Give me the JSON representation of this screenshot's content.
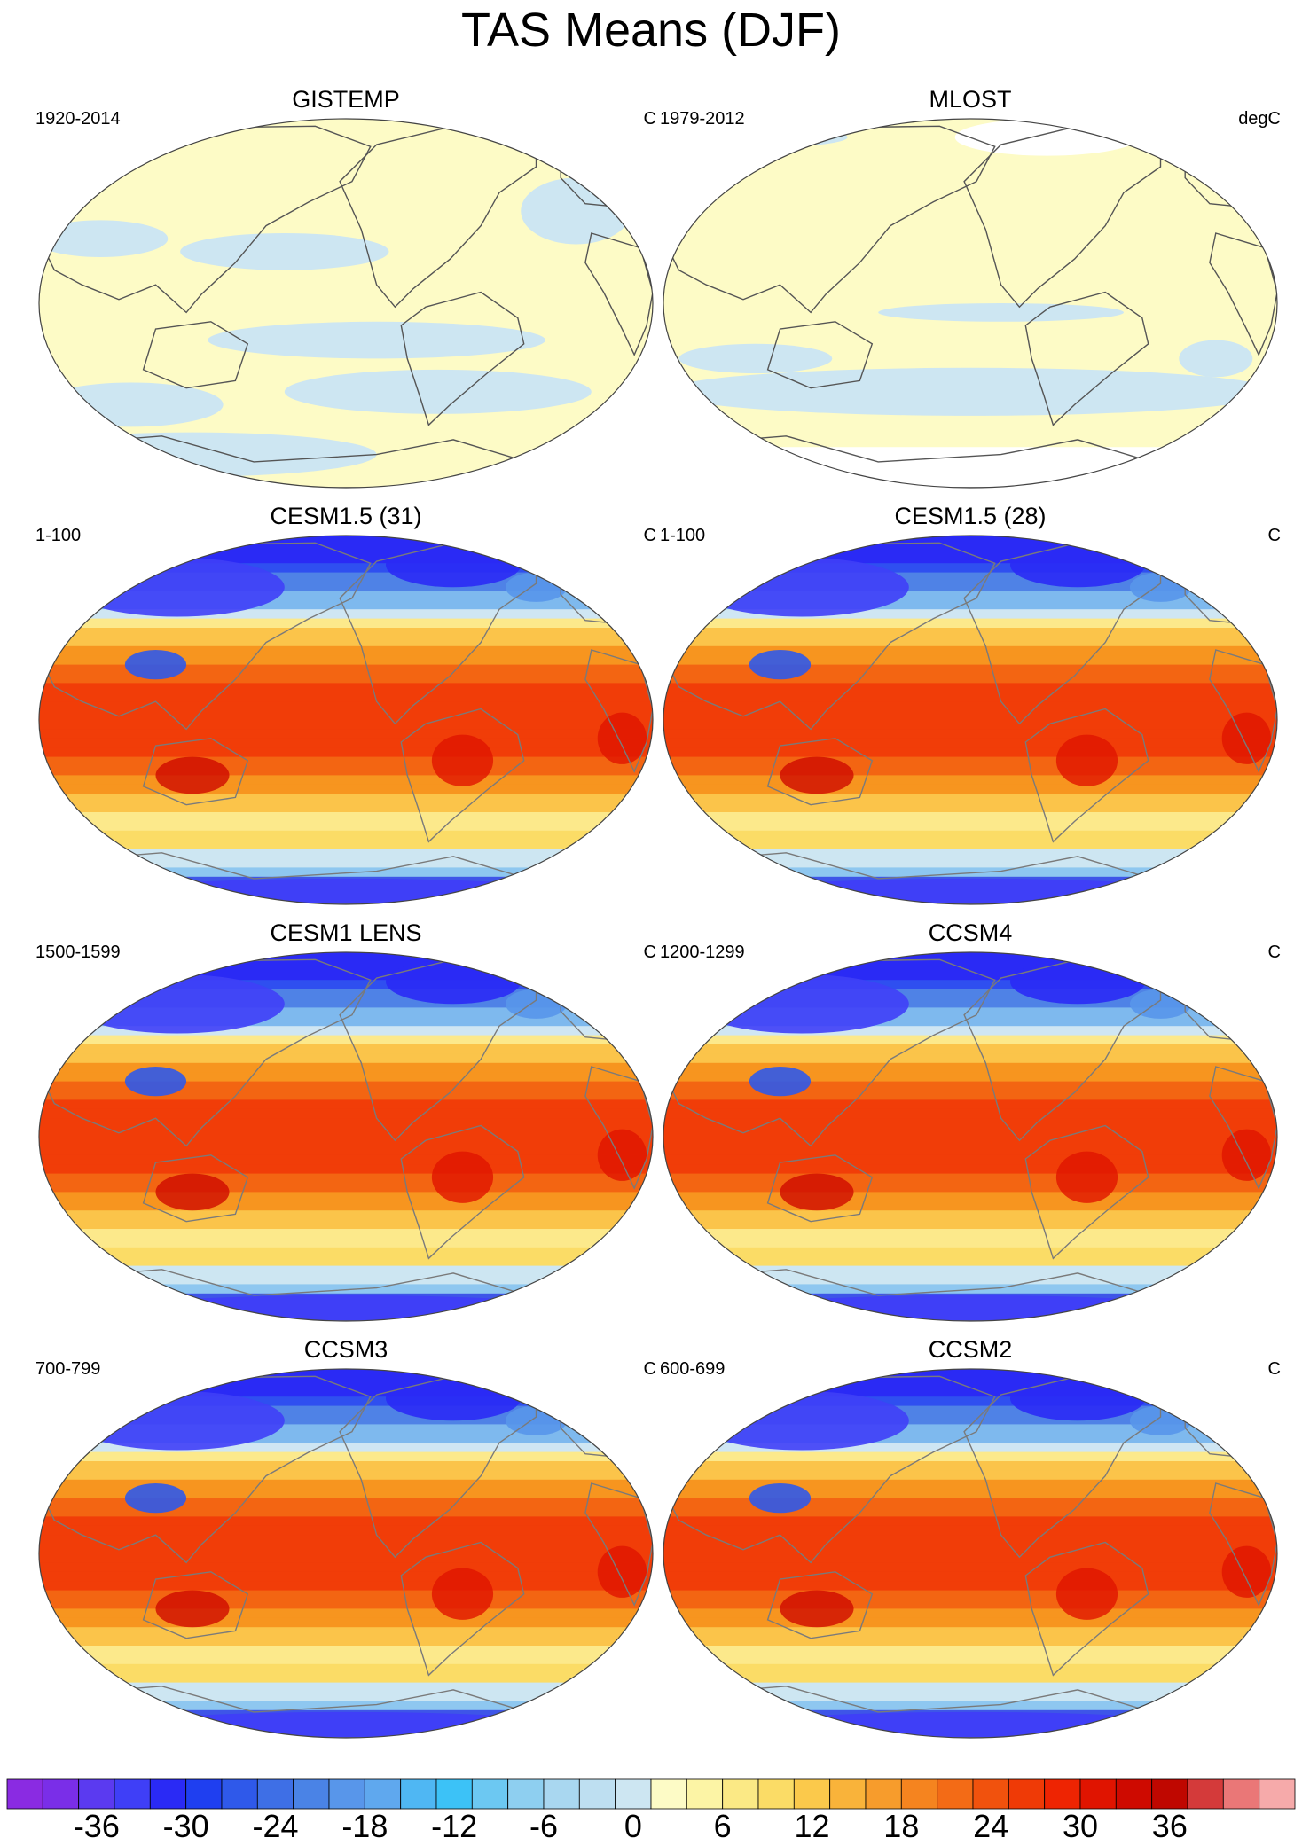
{
  "title": "TAS Means (DJF)",
  "panels": [
    {
      "title": "GISTEMP",
      "period": "1920-2014",
      "units": "C",
      "style": "obs",
      "has_gaps": true
    },
    {
      "title": "MLOST",
      "period": "1979-2012",
      "units": "degC",
      "style": "obs",
      "has_gaps": true
    },
    {
      "title": "CESM1.5 (31)",
      "period": "1-100",
      "units": "C",
      "style": "model"
    },
    {
      "title": "CESM1.5 (28)",
      "period": "1-100",
      "units": "C",
      "style": "model"
    },
    {
      "title": "CESM1 LENS",
      "period": "1500-1599",
      "units": "C",
      "style": "model"
    },
    {
      "title": "CCSM4",
      "period": "1200-1299",
      "units": "C",
      "style": "model"
    },
    {
      "title": "CCSM3",
      "period": "700-799",
      "units": "C",
      "style": "model"
    },
    {
      "title": "CCSM2",
      "period": "600-699",
      "units": "C",
      "style": "model"
    }
  ],
  "colorbar": {
    "tick_labels": [
      "-36",
      "-30",
      "-24",
      "-18",
      "-12",
      "-6",
      "0",
      "6",
      "12",
      "18",
      "24",
      "30",
      "36"
    ],
    "colors": [
      "#8a2be2",
      "#7a2ee8",
      "#5b3af0",
      "#3f3ff7",
      "#2a2af5",
      "#1f3ff0",
      "#2f59ea",
      "#3e6fe6",
      "#4a83e6",
      "#5896ea",
      "#5fa8ee",
      "#4fb7f3",
      "#3cc2f7",
      "#6cc8f2",
      "#8ecff0",
      "#a9d7f0",
      "#bedff1",
      "#cde6f2",
      "#fdfbc6",
      "#fcf4a5",
      "#fbe985",
      "#fbdc66",
      "#fbc94b",
      "#f9b33a",
      "#f79c2c",
      "#f5841f",
      "#f36b16",
      "#f1520d",
      "#ef3a06",
      "#ee2402",
      "#e01400",
      "#ce0a00",
      "#bf0700",
      "#d43a3a",
      "#ea7777",
      "#f6aaaa"
    ]
  }
}
